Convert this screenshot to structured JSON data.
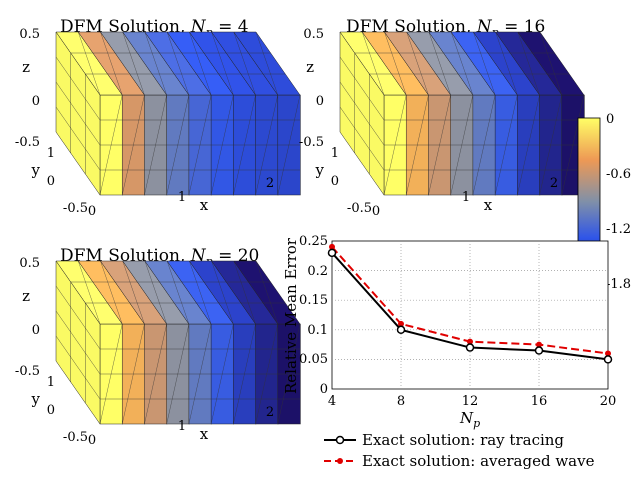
{
  "panels": [
    {
      "title_prefix": "DFM Solution, ",
      "title_var": "N",
      "title_sub": "p",
      "title_suffix": " = 4",
      "profile": [
        0,
        -0.55,
        -0.85,
        -1.05,
        -1.18,
        -1.28,
        -1.35,
        -1.38,
        -1.4
      ]
    },
    {
      "title_prefix": "DFM Solution, ",
      "title_var": "N",
      "title_sub": "p",
      "title_suffix": " = 16",
      "profile": [
        0,
        -0.35,
        -0.6,
        -0.85,
        -1.05,
        -1.25,
        -1.45,
        -1.62,
        -1.75
      ]
    },
    {
      "title_prefix": "DFM Solution, ",
      "title_var": "N",
      "title_sub": "p",
      "title_suffix": " = 20",
      "profile": [
        0,
        -0.35,
        -0.6,
        -0.85,
        -1.05,
        -1.25,
        -1.45,
        -1.62,
        -1.75
      ]
    }
  ],
  "axes3d": {
    "z_ticks": [
      "0.5",
      "0",
      "-0.5"
    ],
    "y_ticks": [
      "1",
      "0",
      "-0.5"
    ],
    "x_ticks": [
      "0",
      "1",
      "2"
    ],
    "x_label": "x",
    "y_label": "y",
    "z_label": "z"
  },
  "colorbar": {
    "ticks": [
      "0",
      "-0.6",
      "-1.2",
      "-1.8"
    ],
    "min": -1.8,
    "max": 0
  },
  "chart_data": {
    "type": "line",
    "x": [
      4,
      8,
      12,
      16,
      20
    ],
    "series": [
      {
        "name": "Exact solution: ray tracing",
        "values": [
          0.23,
          0.1,
          0.07,
          0.065,
          0.05
        ],
        "color": "#000000",
        "dash": "solid",
        "marker": "circle"
      },
      {
        "name": "Exact solution: averaged wave",
        "values": [
          0.24,
          0.11,
          0.08,
          0.075,
          0.06
        ],
        "color": "#e00000",
        "dash": "dashed",
        "marker": "dot"
      }
    ],
    "xlabel_var": "N",
    "xlabel_sub": "p",
    "ylabel": "Relative Mean Error",
    "xlim": [
      4,
      20
    ],
    "ylim": [
      0,
      0.25
    ],
    "xticks": [
      "4",
      "8",
      "12",
      "16",
      "20"
    ],
    "yticks": [
      "0",
      "0.05",
      "0.1",
      "0.15",
      "0.2",
      "0.25"
    ],
    "grid": true
  }
}
